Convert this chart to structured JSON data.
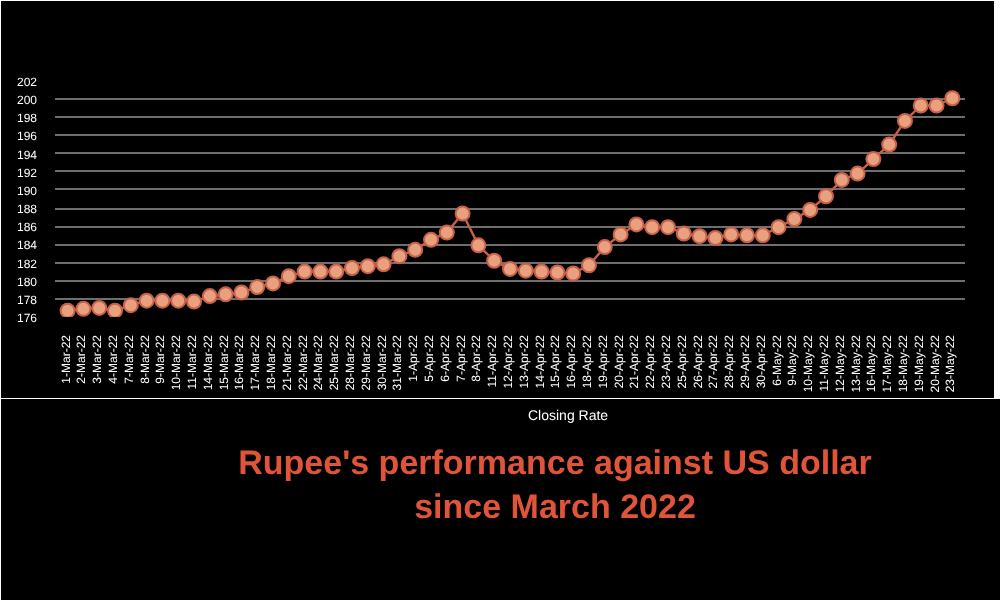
{
  "chart_data": {
    "type": "line",
    "title": "Rupee's performance against US dollar since March 2022",
    "categories": [
      "1-Mar-22",
      "2-Mar-22",
      "3-Mar-22",
      "4-Mar-22",
      "7-Mar-22",
      "8-Mar-22",
      "9-Mar-22",
      "10-Mar-22",
      "11-Mar-22",
      "14-Mar-22",
      "15-Mar-22",
      "16-Mar-22",
      "17-Mar-22",
      "18-Mar-22",
      "21-Mar-22",
      "22-Mar-22",
      "24-Mar-22",
      "25-Mar-22",
      "28-Mar-22",
      "29-Mar-22",
      "30-Mar-22",
      "31-Mar-22",
      "1-Apr-22",
      "5-Apr-22",
      "6-Apr-22",
      "7-Apr-22",
      "8-Apr-22",
      "11-Apr-22",
      "12-Apr-22",
      "13-Apr-22",
      "14-Apr-22",
      "15-Apr-22",
      "16-Apr-22",
      "18-Apr-22",
      "19-Apr-22",
      "20-Apr-22",
      "21-Apr-22",
      "22-Apr-22",
      "23-Apr-22",
      "25-Apr-22",
      "26-Apr-22",
      "27-Apr-22",
      "28-Apr-22",
      "29-Apr-22",
      "30-Apr-22",
      "6-May-22",
      "9-May-22",
      "10-May-22",
      "11-May-22",
      "12-May-22",
      "13-May-22",
      "16-May-22",
      "17-May-22",
      "18-May-22",
      "19-May-22",
      "20-May-22",
      "23-May-22"
    ],
    "series": [
      {
        "name": "Closing Rate",
        "color": "#e8a07f",
        "values": [
          176.7,
          176.9,
          177.0,
          176.7,
          177.3,
          177.8,
          177.8,
          177.8,
          177.7,
          178.3,
          178.5,
          178.7,
          179.3,
          179.7,
          180.5,
          181.0,
          181.0,
          181.0,
          181.4,
          181.6,
          181.8,
          182.7,
          183.4,
          184.5,
          185.3,
          187.4,
          183.9,
          182.2,
          181.3,
          181.1,
          181.0,
          180.9,
          180.8,
          181.7,
          183.7,
          185.1,
          186.2,
          185.9,
          185.9,
          185.2,
          184.9,
          184.7,
          185.1,
          185.0,
          185.0,
          185.9,
          186.8,
          187.8,
          189.3,
          191.1,
          191.8,
          193.4,
          195.0,
          197.6,
          199.3,
          199.3,
          200.1
        ]
      }
    ],
    "ylim": [
      176,
      202
    ],
    "yticks": [
      176,
      178,
      180,
      182,
      184,
      186,
      188,
      190,
      192,
      194,
      196,
      198,
      200,
      202
    ],
    "grid": "y",
    "legend": "bottom",
    "marker": "circle",
    "line_style": "solid"
  }
}
